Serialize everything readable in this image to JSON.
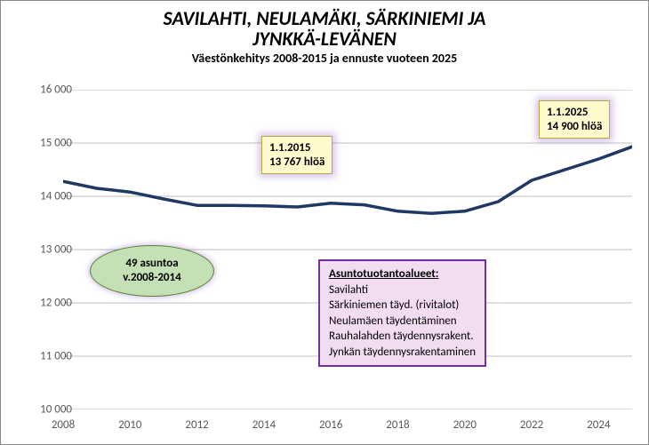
{
  "title": {
    "line1": "SAVILAHTI, NEULAMÄKI, SÄRKINIEMI JA",
    "line2": "JYNKKÄ-LEVÄNEN",
    "subtitle": "Väestönkehitys 2008-2015 ja ennuste vuoteen 2025"
  },
  "chart": {
    "type": "line",
    "x_values": [
      2008,
      2009,
      2010,
      2011,
      2012,
      2013,
      2014,
      2015,
      2016,
      2017,
      2018,
      2019,
      2020,
      2021,
      2022,
      2023,
      2024,
      2025
    ],
    "y_values": [
      14280,
      14150,
      14080,
      13950,
      13830,
      13830,
      13820,
      13800,
      13870,
      13840,
      13720,
      13680,
      13720,
      13900,
      14300,
      14500,
      14700,
      14930
    ],
    "line_color": "#203864",
    "line_width": 3.5,
    "xlim": [
      2008,
      2025
    ],
    "ylim": [
      10000,
      16000
    ],
    "x_ticks": [
      2008,
      2010,
      2012,
      2014,
      2016,
      2018,
      2020,
      2022,
      2024
    ],
    "y_ticks": [
      10000,
      11000,
      12000,
      13000,
      14000,
      15000,
      16000
    ],
    "y_tick_labels": [
      "10 000",
      "11 000",
      "12 000",
      "13 000",
      "14 000",
      "15 000",
      "16 000"
    ],
    "grid_color": "#bfbfbf",
    "background_color": "#ffffff",
    "tick_color": "#808080",
    "axis_label_color": "#595959",
    "axis_font_size": 13
  },
  "callouts": {
    "yellow1": {
      "line1": "1.1.2015",
      "line2": "13 767 hlöä"
    },
    "yellow2": {
      "line1": "1.1.2025",
      "line2": "14 900 hlöä"
    },
    "green": {
      "line1": "49 asuntoa",
      "line2": "v.2008-2014"
    },
    "pink": {
      "heading": "Asuntotuotantoalueet:",
      "items": [
        "Savilahti",
        "Särkiniemen täyd. (rivitalot)",
        "Neulamäen täydentäminen",
        "Rauhalahden täydennysrakent.",
        "Jynkän täydennysrakentaminen"
      ]
    }
  },
  "colors": {
    "callout_yellow_bg": "#fffacd",
    "callout_yellow_border": "#b8a843",
    "callout_green_bg": "#c5e0b4",
    "callout_green_border": "#548235",
    "callout_pink_bg": "#f2dcf2",
    "callout_pink_border": "#7030a0",
    "glow": "rgba(150, 100, 200, 0.4)"
  }
}
